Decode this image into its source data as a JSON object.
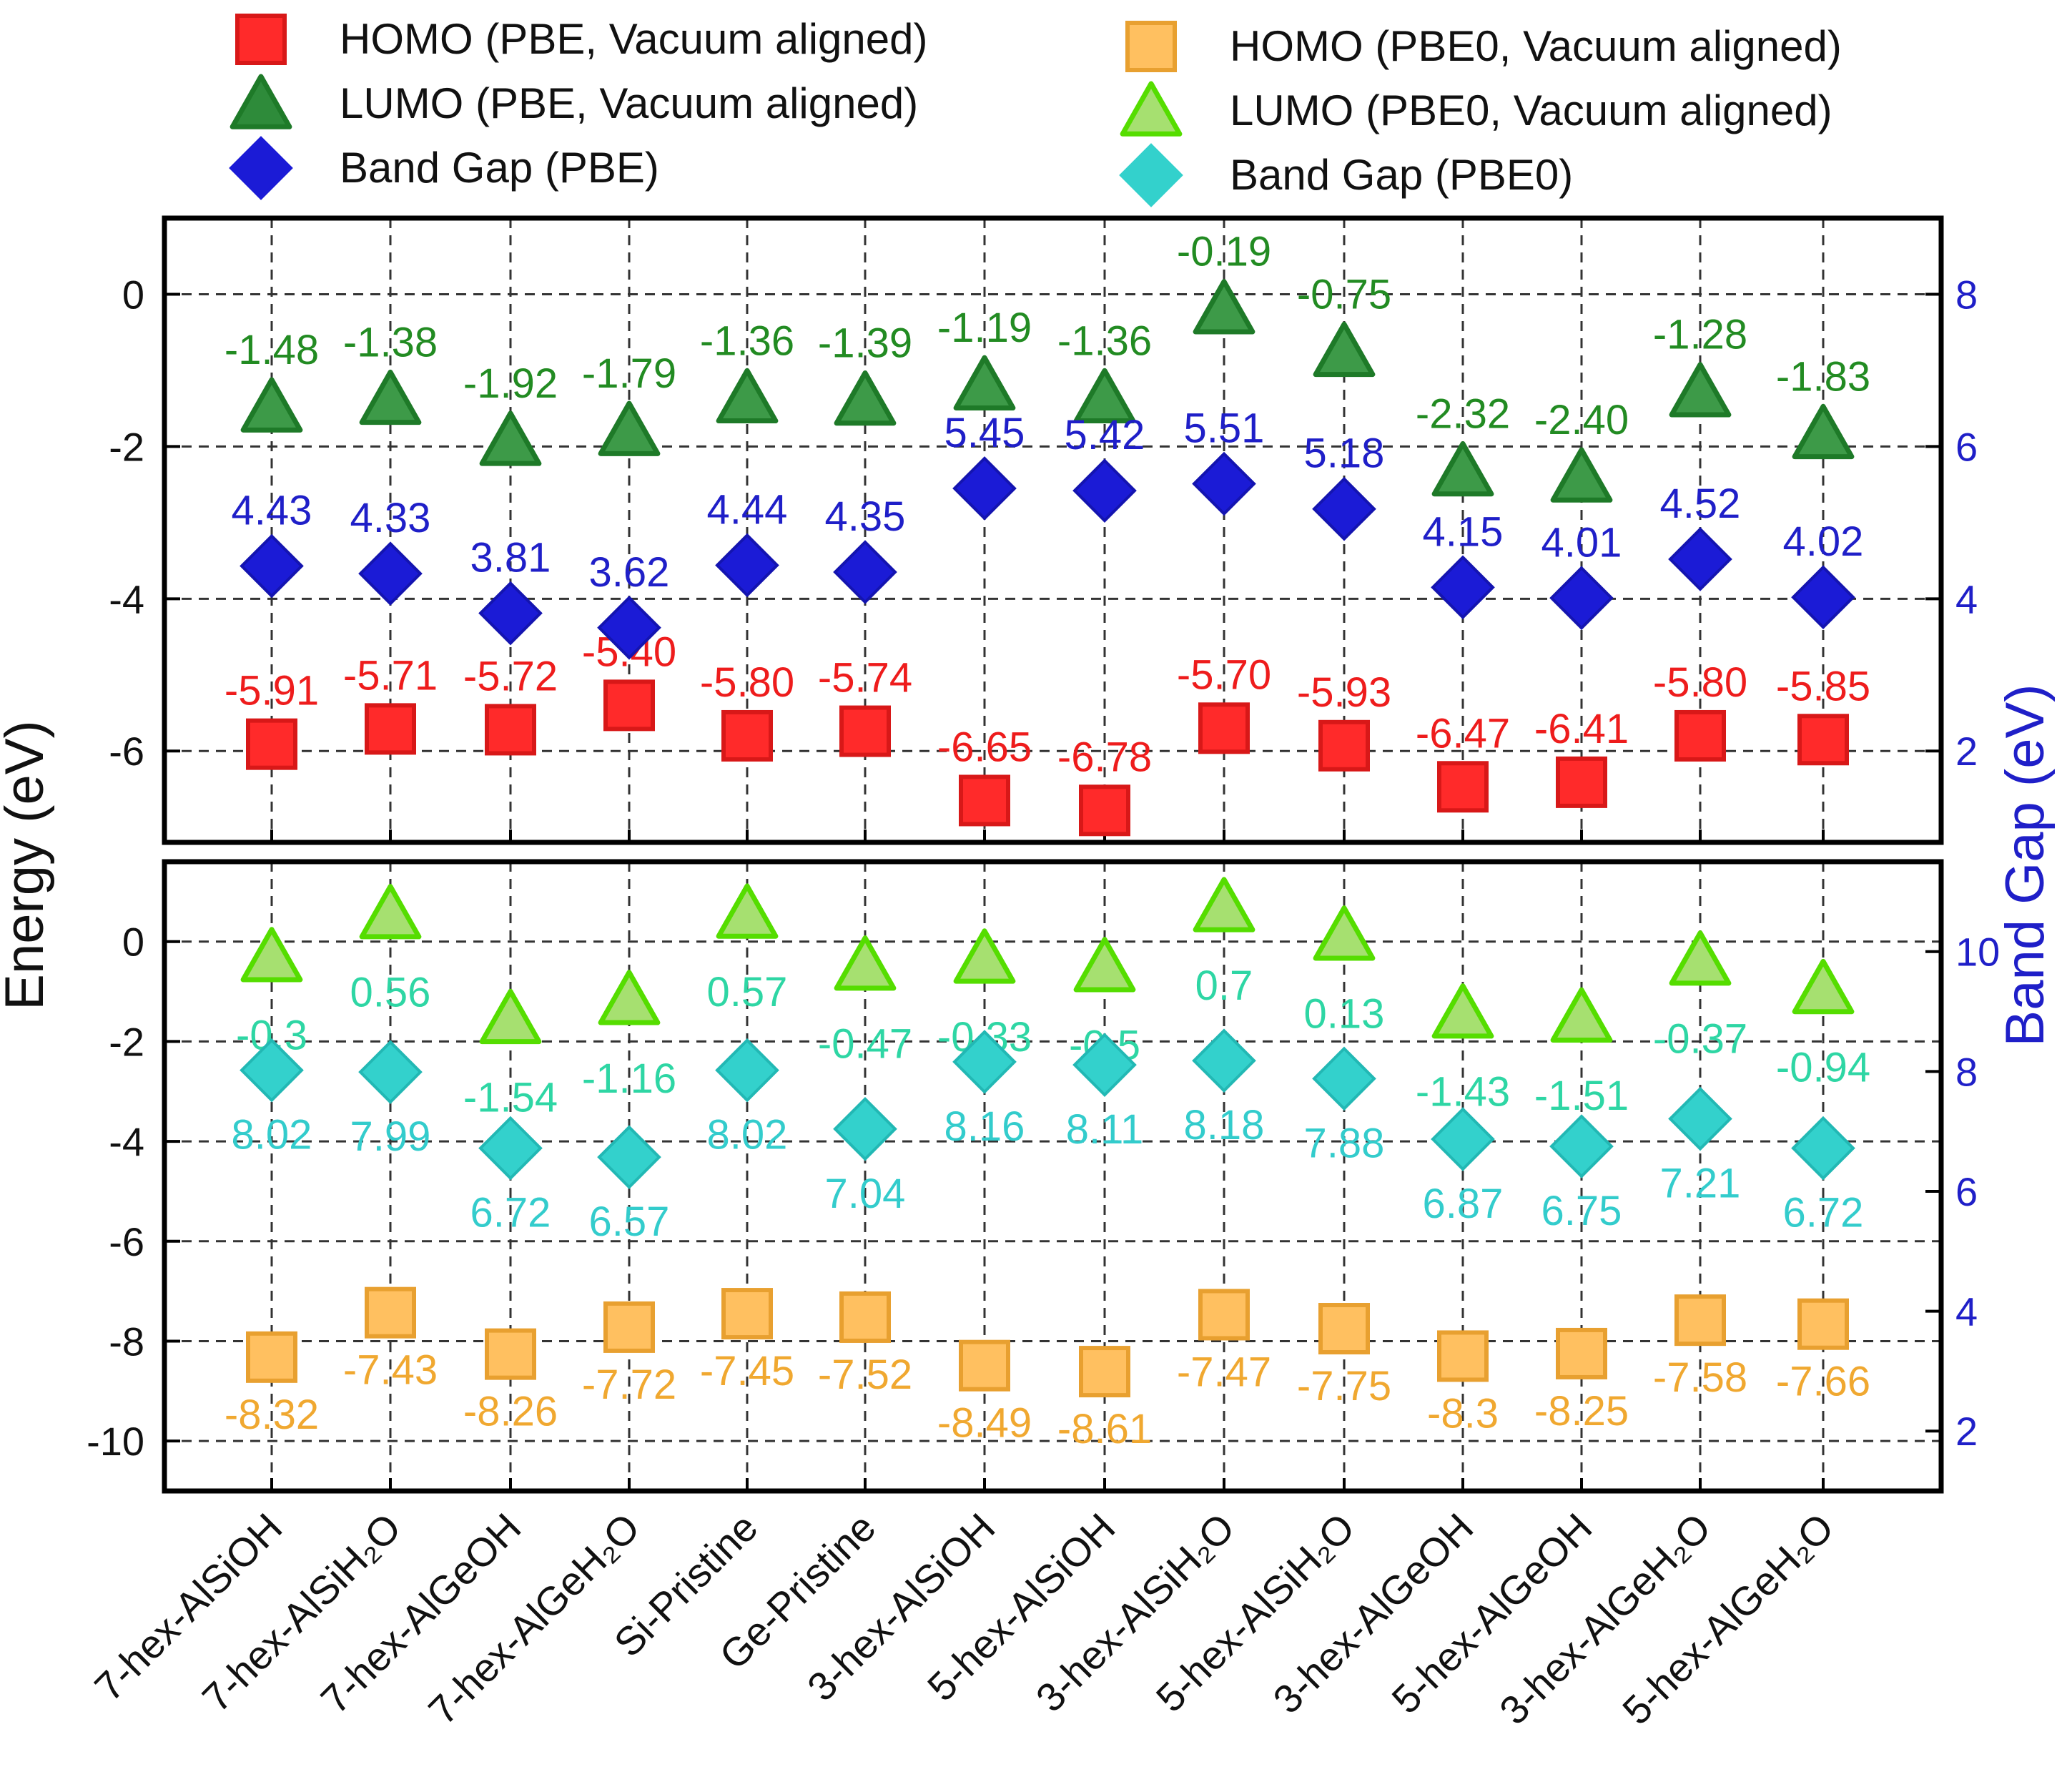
{
  "chart_data": {
    "type": "scatter",
    "categories": [
      "7-hex-AlSiOH",
      "7-hex-AlSiH₂O",
      "7-hex-AlGeOH",
      "7-hex-AlGeH₂O",
      "Si-Pristine",
      "Ge-Pristine",
      "3-hex-AlSiOH",
      "5-hex-AlSiOH",
      "3-hex-AlSiH₂O",
      "5-hex-AlSiH₂O",
      "3-hex-AlGeOH",
      "5-hex-AlGeOH",
      "3-hex-AlGeH₂O",
      "5-hex-AlGeH₂O"
    ],
    "ylabel": "Energy (eV)",
    "y2label": "Band Gap (eV)",
    "legend": [
      {
        "name": "HOMO (PBE, Vacuum aligned)",
        "marker": "square",
        "color": "#ff2a2a"
      },
      {
        "name": "LUMO (PBE, Vacuum aligned)",
        "marker": "triangle",
        "color": "#2e8b3a"
      },
      {
        "name": "Band Gap (PBE)",
        "marker": "diamond",
        "color": "#1b1bd6"
      },
      {
        "name": "HOMO (PBE0, Vacuum aligned)",
        "marker": "square",
        "color": "#ffc060"
      },
      {
        "name": "LUMO (PBE0, Vacuum aligned)",
        "marker": "triangle",
        "color": "#a6e070"
      },
      {
        "name": "Band Gap (PBE0)",
        "marker": "diamond",
        "color": "#33d1cc"
      }
    ],
    "panels": [
      {
        "name": "PBE",
        "ylim": [
          -7.2,
          1.0
        ],
        "yticks": [
          0,
          -2,
          -4,
          -6
        ],
        "y2lim": [
          0.8,
          9.0
        ],
        "y2ticks": [
          8,
          6,
          4,
          2
        ],
        "series": [
          {
            "name": "HOMO (PBE, Vacuum aligned)",
            "axis": "left",
            "marker": "square",
            "fill": "#ff2a2a",
            "stroke": "#d81818",
            "label_color": "#ee1c1c",
            "values": [
              -5.91,
              -5.71,
              -5.72,
              -5.4,
              -5.8,
              -5.74,
              -6.65,
              -6.78,
              -5.7,
              -5.93,
              -6.47,
              -6.41,
              -5.8,
              -5.85
            ],
            "labels": [
              "-5.91",
              "-5.71",
              "-5.72",
              "-5.40",
              "-5.80",
              "-5.74",
              "-6.65",
              "-6.78",
              "-5.70",
              "-5.93",
              "-6.47",
              "-6.41",
              "-5.80",
              "-5.85"
            ]
          },
          {
            "name": "LUMO (PBE, Vacuum aligned)",
            "axis": "left",
            "marker": "triangle",
            "fill": "#3d9a48",
            "stroke": "#1e7a28",
            "label_color": "#228b22",
            "values": [
              -1.48,
              -1.38,
              -1.92,
              -1.79,
              -1.36,
              -1.39,
              -1.19,
              -1.36,
              -0.19,
              -0.75,
              -2.32,
              -2.4,
              -1.28,
              -1.83
            ],
            "labels": [
              "-1.48",
              "-1.38",
              "-1.92",
              "-1.79",
              "-1.36",
              "-1.39",
              "-1.19",
              "-1.36",
              "-0.19",
              "-0.75",
              "-2.32",
              "-2.40",
              "-1.28",
              "-1.83"
            ]
          },
          {
            "name": "Band Gap (PBE)",
            "axis": "right",
            "marker": "diamond",
            "fill": "#1b1bd6",
            "stroke": "#1414b0",
            "label_color": "#1f1fc8",
            "values": [
              4.43,
              4.33,
              3.81,
              3.62,
              4.44,
              4.35,
              5.45,
              5.42,
              5.51,
              5.18,
              4.15,
              4.01,
              4.52,
              4.02
            ],
            "labels": [
              "4.43",
              "4.33",
              "3.81",
              "3.62",
              "4.44",
              "4.35",
              "5.45",
              "5.42",
              "5.51",
              "5.18",
              "4.15",
              "4.01",
              "4.52",
              "4.02"
            ]
          }
        ]
      },
      {
        "name": "PBE0",
        "ylim": [
          -11.0,
          1.6
        ],
        "yticks": [
          0,
          -2,
          -4,
          -6,
          -8,
          -10
        ],
        "y2lim": [
          1.0,
          11.5
        ],
        "y2ticks": [
          10,
          8,
          6,
          4,
          2
        ],
        "series": [
          {
            "name": "HOMO (PBE0, Vacuum aligned)",
            "axis": "left",
            "marker": "square",
            "fill": "#ffc060",
            "stroke": "#e8a030",
            "label_color": "#f0a830",
            "values": [
              -8.32,
              -7.43,
              -8.26,
              -7.72,
              -7.45,
              -7.52,
              -8.49,
              -8.61,
              -7.47,
              -7.75,
              -8.3,
              -8.25,
              -7.58,
              -7.66
            ],
            "labels": [
              "-8.32",
              "-7.43",
              "-8.26",
              "-7.72",
              "-7.45",
              "-7.52",
              "-8.49",
              "-8.61",
              "-7.47",
              "-7.75",
              "-8.3",
              "-8.25",
              "-7.58",
              "-7.66"
            ]
          },
          {
            "name": "LUMO (PBE0, Vacuum aligned)",
            "axis": "left",
            "marker": "triangle",
            "fill": "#a6e070",
            "stroke": "#55dd00",
            "label_color": "#2ed6a4",
            "values": [
              -0.3,
              0.56,
              -1.54,
              -1.16,
              0.57,
              -0.47,
              -0.33,
              -0.5,
              0.7,
              0.13,
              -1.43,
              -1.51,
              -0.37,
              -0.94
            ],
            "labels": [
              "-0.3",
              "0.56",
              "-1.54",
              "-1.16",
              "0.57",
              "-0.47",
              "-0.33",
              "-0.5",
              "0.7",
              "0.13",
              "-1.43",
              "-1.51",
              "-0.37",
              "-0.94"
            ]
          },
          {
            "name": "Band Gap (PBE0)",
            "axis": "right",
            "marker": "diamond",
            "fill": "#33d1cc",
            "stroke": "#22b8b4",
            "label_color": "#33cccc",
            "values": [
              8.02,
              7.99,
              6.72,
              6.57,
              8.02,
              7.04,
              8.16,
              8.11,
              8.18,
              7.88,
              6.87,
              6.75,
              7.21,
              6.72
            ],
            "labels": [
              "8.02",
              "7.99",
              "6.72",
              "6.57",
              "8.02",
              "7.04",
              "8.16",
              "8.11",
              "8.18",
              "7.88",
              "6.87",
              "6.75",
              "7.21",
              "6.72"
            ]
          }
        ]
      }
    ]
  }
}
